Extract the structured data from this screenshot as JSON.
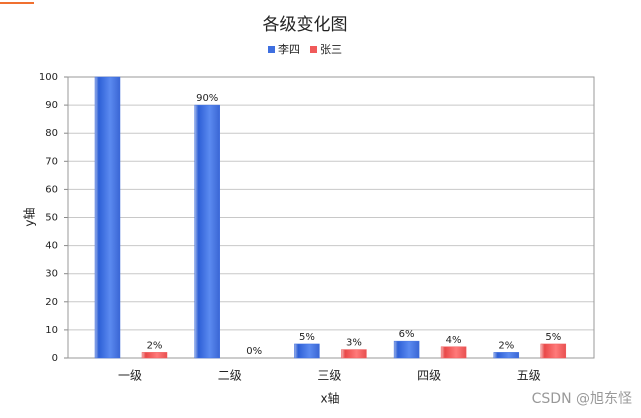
{
  "chart_data": {
    "type": "bar",
    "title": "各级变化图",
    "xlabel": "x轴",
    "ylabel": "y轴",
    "categories": [
      "一级",
      "二级",
      "三级",
      "四级",
      "五级"
    ],
    "series": [
      {
        "name": "李四",
        "color": "#3e6fe0",
        "values": [
          100,
          90,
          5,
          6,
          2
        ],
        "value_labels": [
          null,
          "90%",
          "5%",
          "6%",
          "2%"
        ]
      },
      {
        "name": "张三",
        "color": "#f05a5a",
        "values": [
          2,
          0,
          3,
          4,
          5
        ],
        "value_labels": [
          "2%",
          "0%",
          "3%",
          "4%",
          "5%"
        ]
      }
    ],
    "ylim": [
      0,
      100
    ],
    "yticks": [
      0,
      10,
      20,
      30,
      40,
      50,
      60,
      70,
      80,
      90,
      100
    ],
    "grid": true,
    "legend": "top",
    "watermark": "CSDN @旭东怪"
  }
}
